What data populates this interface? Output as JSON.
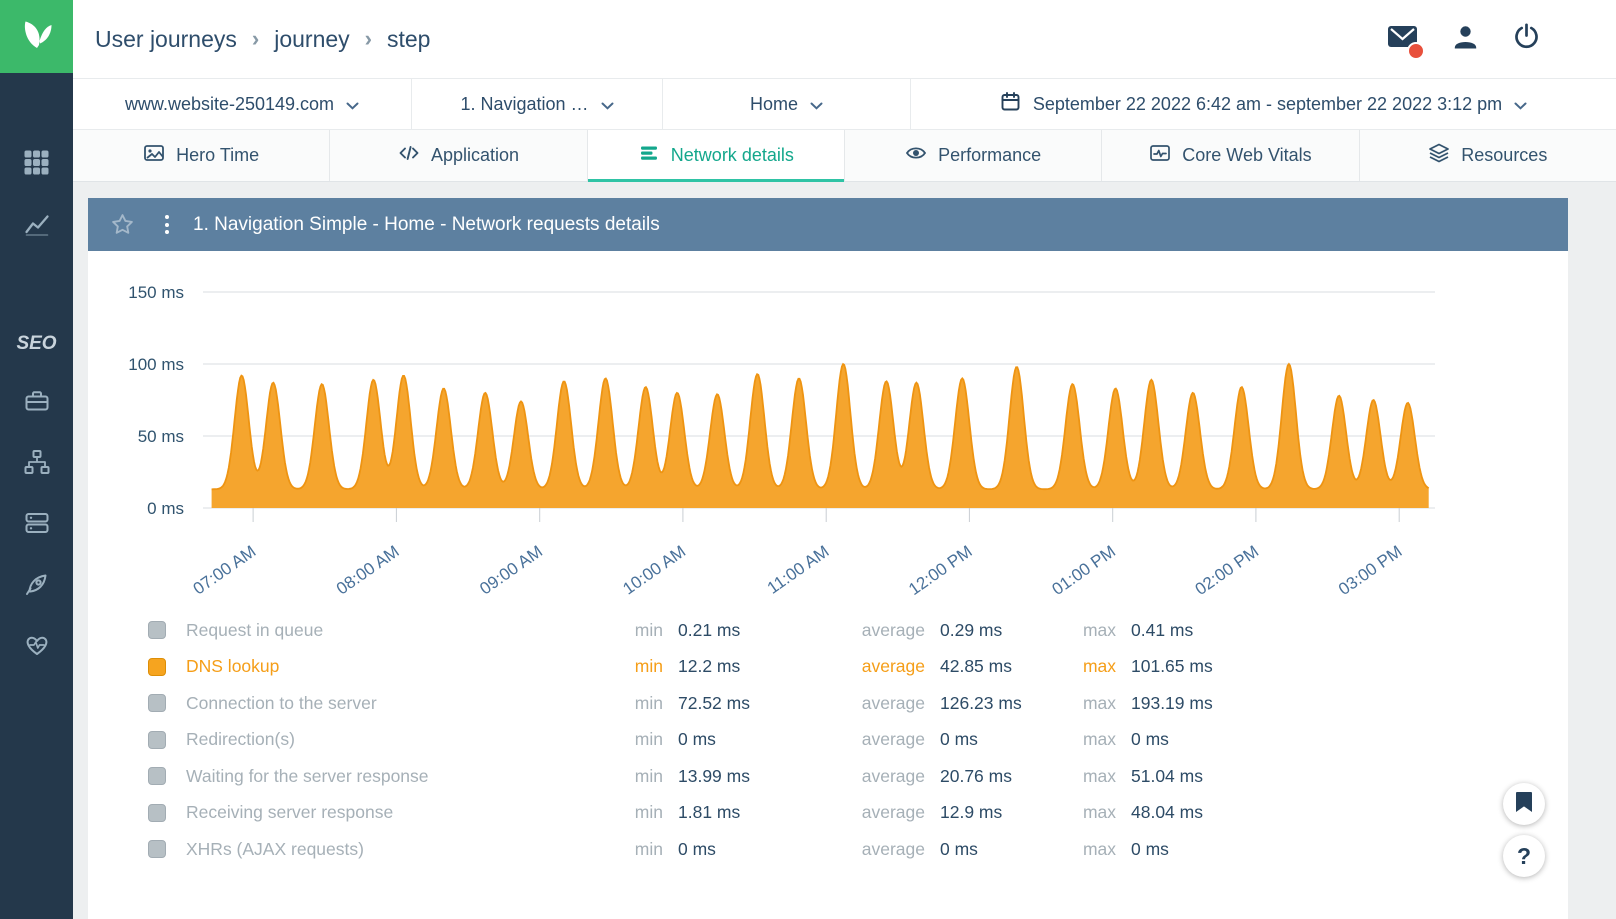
{
  "sidebar": {
    "seo_label": "SEO"
  },
  "header": {
    "breadcrumb": [
      "User journeys",
      "journey",
      "step"
    ],
    "separator": "›"
  },
  "filters": {
    "website": "www.website-250149.com",
    "journey": "1. Navigation …",
    "step": "Home",
    "date_range": "September 22 2022 6:42 am - september 22 2022 3:12 pm"
  },
  "tabs": [
    {
      "label": "Hero Time"
    },
    {
      "label": "Application"
    },
    {
      "label": "Network details"
    },
    {
      "label": "Performance"
    },
    {
      "label": "Core Web Vitals"
    },
    {
      "label": "Resources"
    }
  ],
  "panel": {
    "title": "1. Navigation Simple - Home - Network requests details"
  },
  "chart_data": {
    "type": "area",
    "title": "1. Navigation Simple - Home - Network requests details",
    "unit": "ms",
    "ylim": [
      0,
      150
    ],
    "y_ticks": [
      "150 ms",
      "100 ms",
      "50 ms",
      "0 ms"
    ],
    "x_ticks": [
      "07:00 AM",
      "08:00 AM",
      "09:00 AM",
      "10:00 AM",
      "11:00 AM",
      "12:00 PM",
      "01:00 PM",
      "02:00 PM",
      "03:00 PM"
    ],
    "x_range_hours": [
      6.65,
      15.25
    ],
    "series": [
      {
        "name": "DNS lookup",
        "color": "#f5a52e",
        "stroke": "#ee9412",
        "baseline_ms": 13,
        "peaks": [
          [
            6.92,
            92
          ],
          [
            7.14,
            87
          ],
          [
            7.48,
            86
          ],
          [
            7.84,
            89
          ],
          [
            8.05,
            92
          ],
          [
            8.33,
            83
          ],
          [
            8.62,
            80
          ],
          [
            8.87,
            74
          ],
          [
            9.17,
            88
          ],
          [
            9.46,
            90
          ],
          [
            9.74,
            84
          ],
          [
            9.96,
            80
          ],
          [
            10.24,
            79
          ],
          [
            10.52,
            93
          ],
          [
            10.81,
            90
          ],
          [
            11.12,
            100
          ],
          [
            11.42,
            88
          ],
          [
            11.63,
            87
          ],
          [
            11.95,
            90
          ],
          [
            12.33,
            98
          ],
          [
            12.72,
            86
          ],
          [
            13.02,
            83
          ],
          [
            13.27,
            89
          ],
          [
            13.56,
            80
          ],
          [
            13.9,
            84
          ],
          [
            14.23,
            100
          ],
          [
            14.58,
            78
          ],
          [
            14.82,
            75
          ],
          [
            15.06,
            73
          ]
        ]
      }
    ]
  },
  "legend": {
    "columns": [
      "min",
      "average",
      "max"
    ],
    "rows": [
      {
        "label": "Request in queue",
        "min": "0.21 ms",
        "average": "0.29 ms",
        "max": "0.41 ms",
        "active": false
      },
      {
        "label": "DNS lookup",
        "min": "12.2 ms",
        "average": "42.85 ms",
        "max": "101.65 ms",
        "active": true
      },
      {
        "label": "Connection to the server",
        "min": "72.52 ms",
        "average": "126.23 ms",
        "max": "193.19 ms",
        "active": false
      },
      {
        "label": "Redirection(s)",
        "min": "0 ms",
        "average": "0 ms",
        "max": "0 ms",
        "active": false
      },
      {
        "label": "Waiting for the server response",
        "min": "13.99 ms",
        "average": "20.76 ms",
        "max": "51.04 ms",
        "active": false
      },
      {
        "label": "Receiving server response",
        "min": "1.81 ms",
        "average": "12.9 ms",
        "max": "48.04 ms",
        "active": false
      },
      {
        "label": "XHRs (AJAX requests)",
        "min": "0 ms",
        "average": "0 ms",
        "max": "0 ms",
        "active": false
      }
    ]
  },
  "floating": {
    "help_label": "?"
  }
}
